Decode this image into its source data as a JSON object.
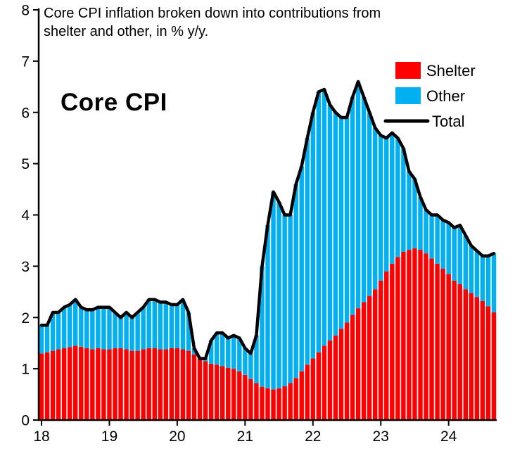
{
  "chart_data": {
    "type": "bar",
    "subtype": "stacked",
    "title": "Core CPI inflation broken down into contributions from shelter and other, in % y/y.",
    "title_lines": [
      "Core CPI inflation broken down into contributions from",
      "shelter and other, in % y/y."
    ],
    "inner_label": "Core CPI",
    "frequency": "monthly",
    "x_start": "2018-01",
    "x_end": "2024-09",
    "xlabel": "",
    "ylabel": "",
    "ylim": [
      0,
      8
    ],
    "y_ticks": [
      0,
      1,
      2,
      3,
      4,
      5,
      6,
      7,
      8
    ],
    "x_tick_labels": [
      "18",
      "19",
      "20",
      "21",
      "22",
      "23",
      "24"
    ],
    "x_tick_month_indices": [
      0,
      12,
      24,
      36,
      48,
      60,
      72
    ],
    "grid": false,
    "legend_position": "top-right",
    "legend": [
      {
        "label": "Shelter",
        "type": "box",
        "color": "#FF0000"
      },
      {
        "label": "Other",
        "type": "box",
        "color": "#00B0F0"
      },
      {
        "label": "Total",
        "type": "line",
        "color": "#000000"
      }
    ],
    "series": [
      {
        "name": "Shelter",
        "color": "#FF0000",
        "values": [
          1.3,
          1.32,
          1.35,
          1.38,
          1.4,
          1.42,
          1.45,
          1.43,
          1.4,
          1.38,
          1.4,
          1.38,
          1.38,
          1.4,
          1.4,
          1.38,
          1.35,
          1.35,
          1.38,
          1.4,
          1.4,
          1.38,
          1.38,
          1.4,
          1.4,
          1.38,
          1.35,
          1.28,
          1.2,
          1.15,
          1.1,
          1.08,
          1.05,
          1.02,
          1.0,
          0.95,
          0.88,
          0.8,
          0.72,
          0.65,
          0.62,
          0.6,
          0.62,
          0.66,
          0.72,
          0.82,
          0.95,
          1.08,
          1.2,
          1.32,
          1.45,
          1.55,
          1.65,
          1.78,
          1.9,
          2.05,
          2.18,
          2.3,
          2.42,
          2.55,
          2.72,
          2.9,
          3.05,
          3.18,
          3.28,
          3.32,
          3.35,
          3.32,
          3.25,
          3.15,
          3.05,
          2.95,
          2.85,
          2.72,
          2.65,
          2.55,
          2.48,
          2.4,
          2.32,
          2.22,
          2.1
        ]
      },
      {
        "name": "Other",
        "color": "#00B0F0",
        "values": [
          0.55,
          0.53,
          0.75,
          0.72,
          0.8,
          0.83,
          0.9,
          0.77,
          0.75,
          0.77,
          0.8,
          0.82,
          0.82,
          0.7,
          0.6,
          0.72,
          0.65,
          0.75,
          0.82,
          0.95,
          0.95,
          0.92,
          0.92,
          0.85,
          0.85,
          0.97,
          0.75,
          0.12,
          0.0,
          0.05,
          0.45,
          0.62,
          0.65,
          0.58,
          0.65,
          0.65,
          0.52,
          0.5,
          0.93,
          2.35,
          3.18,
          3.85,
          3.63,
          3.34,
          3.28,
          3.78,
          4.0,
          4.42,
          4.8,
          5.08,
          5.0,
          4.6,
          4.35,
          4.12,
          4.0,
          4.25,
          4.42,
          4.0,
          3.58,
          3.15,
          2.83,
          2.6,
          2.55,
          2.32,
          2.02,
          1.53,
          1.35,
          1.03,
          0.85,
          0.85,
          0.95,
          0.95,
          1.0,
          1.03,
          1.15,
          1.05,
          0.92,
          0.9,
          0.88,
          0.98,
          1.15
        ]
      }
    ],
    "total_line": {
      "name": "Total",
      "color": "#000000",
      "values": [
        1.85,
        1.85,
        2.1,
        2.1,
        2.2,
        2.25,
        2.35,
        2.2,
        2.15,
        2.15,
        2.2,
        2.2,
        2.2,
        2.1,
        2.0,
        2.1,
        2.0,
        2.1,
        2.2,
        2.35,
        2.35,
        2.3,
        2.3,
        2.25,
        2.25,
        2.35,
        2.1,
        1.4,
        1.2,
        1.2,
        1.55,
        1.7,
        1.7,
        1.6,
        1.65,
        1.6,
        1.4,
        1.3,
        1.65,
        3.0,
        3.8,
        4.45,
        4.25,
        4.0,
        4.0,
        4.6,
        4.95,
        5.5,
        6.0,
        6.4,
        6.45,
        6.15,
        6.0,
        5.9,
        5.9,
        6.3,
        6.6,
        6.3,
        6.0,
        5.7,
        5.55,
        5.5,
        5.6,
        5.5,
        5.3,
        4.85,
        4.7,
        4.35,
        4.1,
        4.0,
        4.0,
        3.9,
        3.85,
        3.75,
        3.8,
        3.6,
        3.4,
        3.3,
        3.2,
        3.2,
        3.25
      ]
    }
  },
  "colors": {
    "background": "#FFFFFF",
    "axis": "#000000",
    "text": "#000000"
  }
}
